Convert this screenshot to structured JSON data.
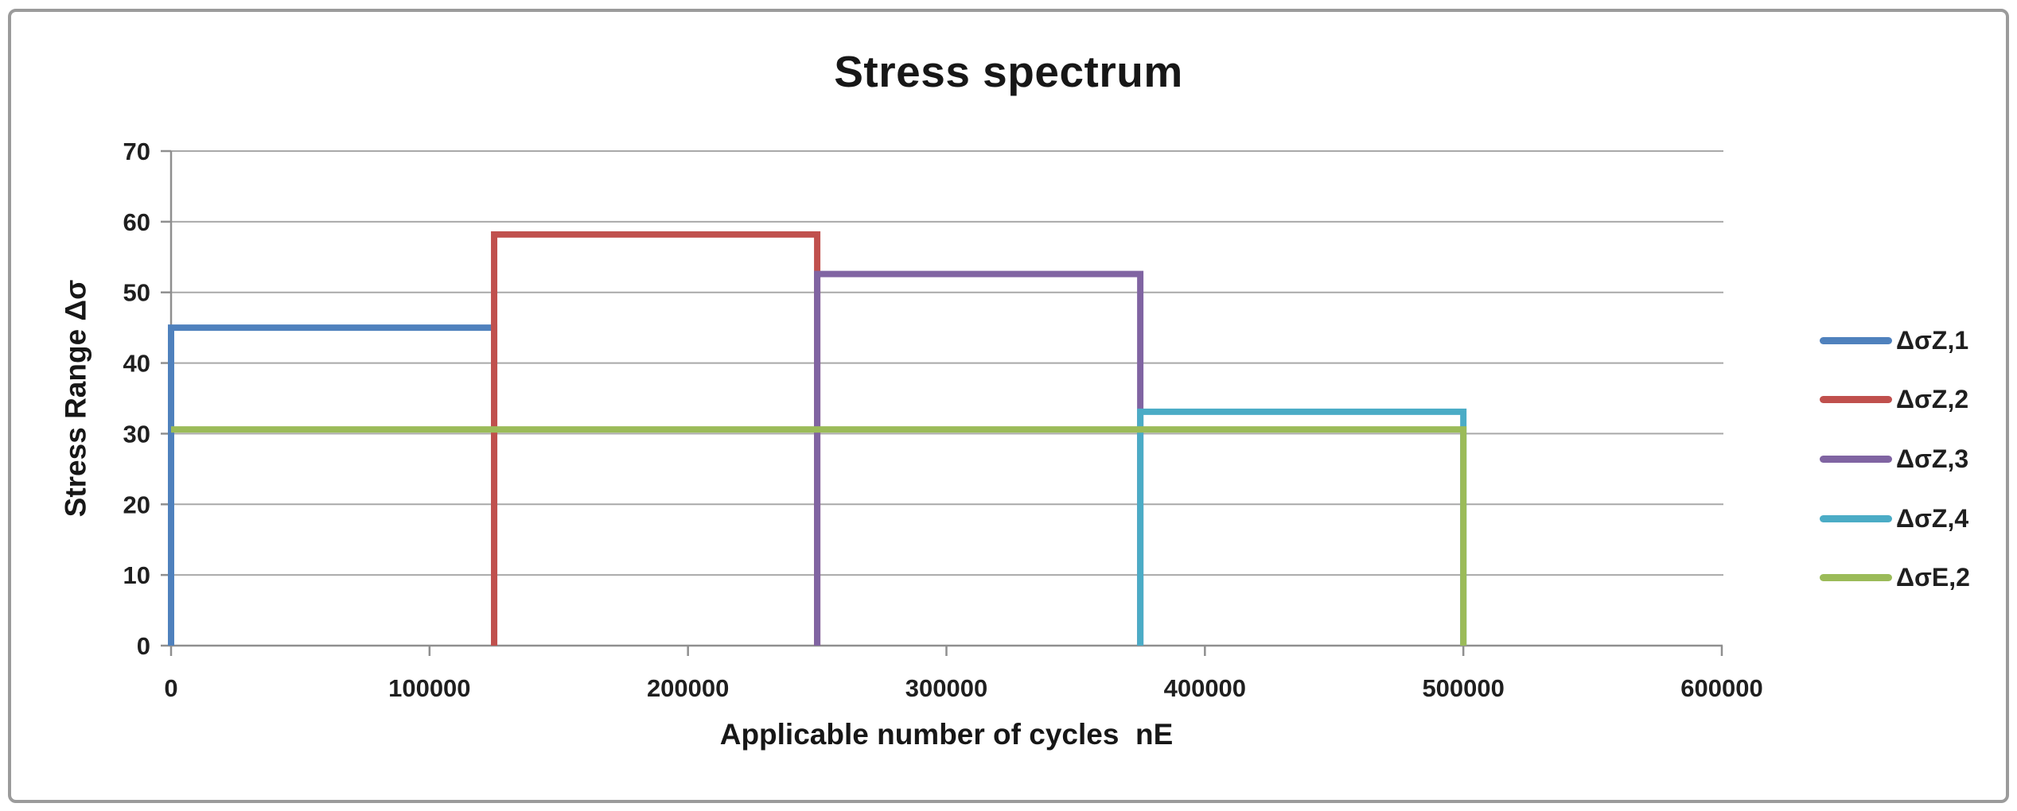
{
  "frame": {
    "border_color": "#9b9b9b"
  },
  "chart_data": {
    "type": "line",
    "subtype": "step-spectrum",
    "title": "Stress spectrum",
    "xlabel": "Applicable number of cycles  nE",
    "ylabel": "Stress Range Δσ",
    "xlim": [
      0,
      600000
    ],
    "ylim": [
      0,
      70
    ],
    "x_ticks": [
      0,
      100000,
      200000,
      300000,
      400000,
      500000,
      600000
    ],
    "x_tick_labels": [
      "0",
      "100000",
      "200000",
      "300000",
      "400000",
      "500000",
      "600000"
    ],
    "y_ticks": [
      0,
      10,
      20,
      30,
      40,
      50,
      60,
      70
    ],
    "y_tick_labels": [
      "0",
      "10",
      "20",
      "30",
      "40",
      "50",
      "60",
      "70"
    ],
    "grid": "horizontal",
    "legend_position": "right",
    "axis_color": "#8f8f8f",
    "grid_color": "#a9a9a9",
    "text_color": "#1f1f1f",
    "series": [
      {
        "name": "ΔσZ,1",
        "color": "#4f81bd",
        "x_start": 0,
        "x_end": 125000,
        "value": 45.0,
        "rise_at_start": true
      },
      {
        "name": "ΔσZ,2",
        "color": "#c0504d",
        "x_start": 125000,
        "x_end": 250000,
        "value": 58.2,
        "rise_at_start": true
      },
      {
        "name": "ΔσZ,3",
        "color": "#8064a2",
        "x_start": 250000,
        "x_end": 375000,
        "value": 52.6,
        "rise_at_start": true
      },
      {
        "name": "ΔσZ,4",
        "color": "#4bacc6",
        "x_start": 375000,
        "x_end": 500000,
        "value": 33.1,
        "rise_at_start": true
      },
      {
        "name": "ΔσE,2",
        "color": "#9bbb59",
        "x_start": 0,
        "x_end": 500000,
        "value": 30.6,
        "rise_at_start": false
      }
    ]
  }
}
